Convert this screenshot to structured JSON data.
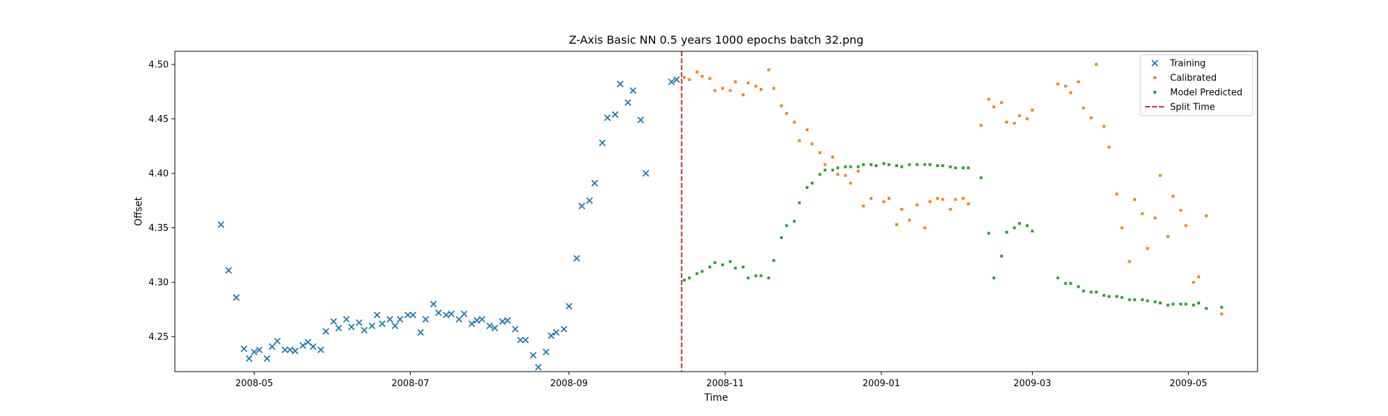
{
  "chart_data": {
    "type": "scatter",
    "title": "Z-Axis Basic NN 0.5 years 1000 epochs batch 32.png",
    "xlabel": "Time",
    "ylabel": "Offset",
    "xlim": [
      "2008-03-31",
      "2009-05-28"
    ],
    "ylim": [
      4.218,
      4.512
    ],
    "xticks": [
      "2008-05-01",
      "2008-07-01",
      "2008-09-01",
      "2008-11-01",
      "2009-01-01",
      "2009-03-01",
      "2009-05-01"
    ],
    "xtick_labels": [
      "2008-05",
      "2008-07",
      "2008-09",
      "2008-11",
      "2009-01",
      "2009-03",
      "2009-05"
    ],
    "yticks": [
      4.25,
      4.3,
      4.35,
      4.4,
      4.45,
      4.5
    ],
    "ytick_labels": [
      "4.25",
      "4.30",
      "4.35",
      "4.40",
      "4.45",
      "4.50"
    ],
    "grid": false,
    "legend_position": "top-right",
    "split_time": "2008-10-15",
    "series": [
      {
        "name": "Training",
        "marker": "x",
        "color": "#1f77b4",
        "points": [
          [
            "2008-04-18",
            4.353
          ],
          [
            "2008-04-21",
            4.311
          ],
          [
            "2008-04-24",
            4.286
          ],
          [
            "2008-04-27",
            4.239
          ],
          [
            "2008-04-29",
            4.23
          ],
          [
            "2008-05-01",
            4.236
          ],
          [
            "2008-05-03",
            4.238
          ],
          [
            "2008-05-06",
            4.23
          ],
          [
            "2008-05-08",
            4.241
          ],
          [
            "2008-05-10",
            4.246
          ],
          [
            "2008-05-13",
            4.238
          ],
          [
            "2008-05-15",
            4.238
          ],
          [
            "2008-05-17",
            4.237
          ],
          [
            "2008-05-20",
            4.242
          ],
          [
            "2008-05-22",
            4.245
          ],
          [
            "2008-05-24",
            4.241
          ],
          [
            "2008-05-27",
            4.238
          ],
          [
            "2008-05-29",
            4.255
          ],
          [
            "2008-06-01",
            4.264
          ],
          [
            "2008-06-03",
            4.258
          ],
          [
            "2008-06-06",
            4.266
          ],
          [
            "2008-06-08",
            4.259
          ],
          [
            "2008-06-11",
            4.263
          ],
          [
            "2008-06-13",
            4.256
          ],
          [
            "2008-06-16",
            4.26
          ],
          [
            "2008-06-18",
            4.27
          ],
          [
            "2008-06-20",
            4.262
          ],
          [
            "2008-06-23",
            4.266
          ],
          [
            "2008-06-25",
            4.26
          ],
          [
            "2008-06-27",
            4.266
          ],
          [
            "2008-06-30",
            4.27
          ],
          [
            "2008-07-02",
            4.27
          ],
          [
            "2008-07-05",
            4.254
          ],
          [
            "2008-07-07",
            4.266
          ],
          [
            "2008-07-10",
            4.28
          ],
          [
            "2008-07-12",
            4.272
          ],
          [
            "2008-07-15",
            4.27
          ],
          [
            "2008-07-17",
            4.271
          ],
          [
            "2008-07-20",
            4.266
          ],
          [
            "2008-07-22",
            4.271
          ],
          [
            "2008-07-25",
            4.262
          ],
          [
            "2008-07-27",
            4.265
          ],
          [
            "2008-07-29",
            4.266
          ],
          [
            "2008-08-01",
            4.26
          ],
          [
            "2008-08-03",
            4.258
          ],
          [
            "2008-08-06",
            4.264
          ],
          [
            "2008-08-08",
            4.265
          ],
          [
            "2008-08-11",
            4.257
          ],
          [
            "2008-08-13",
            4.247
          ],
          [
            "2008-08-15",
            4.247
          ],
          [
            "2008-08-18",
            4.233
          ],
          [
            "2008-08-20",
            4.222
          ],
          [
            "2008-08-23",
            4.236
          ],
          [
            "2008-08-25",
            4.251
          ],
          [
            "2008-08-27",
            4.254
          ],
          [
            "2008-08-30",
            4.257
          ],
          [
            "2008-09-01",
            4.278
          ],
          [
            "2008-09-04",
            4.322
          ],
          [
            "2008-09-06",
            4.37
          ],
          [
            "2008-09-09",
            4.375
          ],
          [
            "2008-09-11",
            4.391
          ],
          [
            "2008-09-14",
            4.428
          ],
          [
            "2008-09-16",
            4.451
          ],
          [
            "2008-09-19",
            4.454
          ],
          [
            "2008-09-21",
            4.482
          ],
          [
            "2008-09-24",
            4.465
          ],
          [
            "2008-09-26",
            4.476
          ],
          [
            "2008-09-29",
            4.449
          ],
          [
            "2008-10-01",
            4.4
          ],
          [
            "2008-10-11",
            4.484
          ],
          [
            "2008-10-13",
            4.486
          ]
        ]
      },
      {
        "name": "Calibrated",
        "marker": "dot",
        "color": "#ff7f0e",
        "points": [
          [
            "2008-10-16",
            4.488
          ],
          [
            "2008-10-18",
            4.486
          ],
          [
            "2008-10-21",
            4.493
          ],
          [
            "2008-10-23",
            4.489
          ],
          [
            "2008-10-26",
            4.487
          ],
          [
            "2008-10-28",
            4.476
          ],
          [
            "2008-10-31",
            4.478
          ],
          [
            "2008-11-03",
            4.476
          ],
          [
            "2008-11-05",
            4.484
          ],
          [
            "2008-11-08",
            4.472
          ],
          [
            "2008-11-10",
            4.483
          ],
          [
            "2008-11-13",
            4.48
          ],
          [
            "2008-11-15",
            4.477
          ],
          [
            "2008-11-18",
            4.495
          ],
          [
            "2008-11-20",
            4.478
          ],
          [
            "2008-11-23",
            4.462
          ],
          [
            "2008-11-25",
            4.455
          ],
          [
            "2008-11-28",
            4.447
          ],
          [
            "2008-11-30",
            4.43
          ],
          [
            "2008-12-03",
            4.44
          ],
          [
            "2008-12-05",
            4.427
          ],
          [
            "2008-12-08",
            4.419
          ],
          [
            "2008-12-10",
            4.408
          ],
          [
            "2008-12-13",
            4.415
          ],
          [
            "2008-12-15",
            4.399
          ],
          [
            "2008-12-18",
            4.398
          ],
          [
            "2008-12-20",
            4.391
          ],
          [
            "2008-12-23",
            4.402
          ],
          [
            "2008-12-25",
            4.37
          ],
          [
            "2008-12-28",
            4.377
          ],
          [
            "2008-12-30",
            4.407
          ],
          [
            "2009-01-02",
            4.374
          ],
          [
            "2009-01-04",
            4.377
          ],
          [
            "2009-01-07",
            4.353
          ],
          [
            "2009-01-09",
            4.367
          ],
          [
            "2009-01-12",
            4.357
          ],
          [
            "2009-01-15",
            4.371
          ],
          [
            "2009-01-18",
            4.35
          ],
          [
            "2009-01-20",
            4.374
          ],
          [
            "2009-01-23",
            4.377
          ],
          [
            "2009-01-25",
            4.376
          ],
          [
            "2009-01-28",
            4.367
          ],
          [
            "2009-01-30",
            4.376
          ],
          [
            "2009-02-02",
            4.377
          ],
          [
            "2009-02-04",
            4.372
          ],
          [
            "2009-02-09",
            4.444
          ],
          [
            "2009-02-12",
            4.468
          ],
          [
            "2009-02-14",
            4.461
          ],
          [
            "2009-02-17",
            4.465
          ],
          [
            "2009-02-19",
            4.447
          ],
          [
            "2009-02-22",
            4.446
          ],
          [
            "2009-02-24",
            4.453
          ],
          [
            "2009-02-27",
            4.45
          ],
          [
            "2009-03-01",
            4.458
          ],
          [
            "2009-03-11",
            4.482
          ],
          [
            "2009-03-14",
            4.48
          ],
          [
            "2009-03-16",
            4.474
          ],
          [
            "2009-03-19",
            4.484
          ],
          [
            "2009-03-21",
            4.46
          ],
          [
            "2009-03-24",
            4.451
          ],
          [
            "2009-03-26",
            4.5
          ],
          [
            "2009-03-29",
            4.443
          ],
          [
            "2009-03-31",
            4.424
          ],
          [
            "2009-04-03",
            4.381
          ],
          [
            "2009-04-05",
            4.35
          ],
          [
            "2009-04-08",
            4.319
          ],
          [
            "2009-04-10",
            4.376
          ],
          [
            "2009-04-13",
            4.363
          ],
          [
            "2009-04-15",
            4.331
          ],
          [
            "2009-04-18",
            4.359
          ],
          [
            "2009-04-20",
            4.398
          ],
          [
            "2009-04-23",
            4.342
          ],
          [
            "2009-04-25",
            4.379
          ],
          [
            "2009-04-28",
            4.366
          ],
          [
            "2009-04-30",
            4.352
          ],
          [
            "2009-05-03",
            4.3
          ],
          [
            "2009-05-05",
            4.305
          ],
          [
            "2009-05-08",
            4.361
          ],
          [
            "2009-05-14",
            4.271
          ]
        ]
      },
      {
        "name": "Model Predicted",
        "marker": "dot",
        "color": "#2ca02c",
        "points": [
          [
            "2008-10-16",
            4.302
          ],
          [
            "2008-10-18",
            4.304
          ],
          [
            "2008-10-21",
            4.308
          ],
          [
            "2008-10-23",
            4.31
          ],
          [
            "2008-10-26",
            4.314
          ],
          [
            "2008-10-28",
            4.318
          ],
          [
            "2008-10-31",
            4.316
          ],
          [
            "2008-11-03",
            4.319
          ],
          [
            "2008-11-05",
            4.313
          ],
          [
            "2008-11-08",
            4.314
          ],
          [
            "2008-11-10",
            4.304
          ],
          [
            "2008-11-13",
            4.306
          ],
          [
            "2008-11-15",
            4.306
          ],
          [
            "2008-11-18",
            4.304
          ],
          [
            "2008-11-20",
            4.32
          ],
          [
            "2008-11-23",
            4.341
          ],
          [
            "2008-11-25",
            4.352
          ],
          [
            "2008-11-28",
            4.356
          ],
          [
            "2008-11-30",
            4.373
          ],
          [
            "2008-12-03",
            4.387
          ],
          [
            "2008-12-05",
            4.391
          ],
          [
            "2008-12-08",
            4.399
          ],
          [
            "2008-12-10",
            4.403
          ],
          [
            "2008-12-13",
            4.403
          ],
          [
            "2008-12-15",
            4.405
          ],
          [
            "2008-12-18",
            4.406
          ],
          [
            "2008-12-20",
            4.406
          ],
          [
            "2008-12-23",
            4.406
          ],
          [
            "2008-12-25",
            4.408
          ],
          [
            "2008-12-28",
            4.408
          ],
          [
            "2008-12-30",
            4.407
          ],
          [
            "2009-01-02",
            4.409
          ],
          [
            "2009-01-04",
            4.408
          ],
          [
            "2009-01-07",
            4.407
          ],
          [
            "2009-01-09",
            4.406
          ],
          [
            "2009-01-12",
            4.408
          ],
          [
            "2009-01-15",
            4.408
          ],
          [
            "2009-01-18",
            4.408
          ],
          [
            "2009-01-20",
            4.408
          ],
          [
            "2009-01-23",
            4.407
          ],
          [
            "2009-01-25",
            4.407
          ],
          [
            "2009-01-28",
            4.406
          ],
          [
            "2009-01-30",
            4.405
          ],
          [
            "2009-02-02",
            4.405
          ],
          [
            "2009-02-04",
            4.405
          ],
          [
            "2009-02-09",
            4.396
          ],
          [
            "2009-02-12",
            4.345
          ],
          [
            "2009-02-14",
            4.304
          ],
          [
            "2009-02-17",
            4.324
          ],
          [
            "2009-02-19",
            4.346
          ],
          [
            "2009-02-22",
            4.35
          ],
          [
            "2009-02-24",
            4.354
          ],
          [
            "2009-02-27",
            4.352
          ],
          [
            "2009-03-01",
            4.347
          ],
          [
            "2009-03-11",
            4.304
          ],
          [
            "2009-03-14",
            4.299
          ],
          [
            "2009-03-16",
            4.299
          ],
          [
            "2009-03-19",
            4.296
          ],
          [
            "2009-03-21",
            4.292
          ],
          [
            "2009-03-24",
            4.291
          ],
          [
            "2009-03-26",
            4.291
          ],
          [
            "2009-03-29",
            4.288
          ],
          [
            "2009-03-31",
            4.287
          ],
          [
            "2009-04-03",
            4.287
          ],
          [
            "2009-04-05",
            4.286
          ],
          [
            "2009-04-08",
            4.284
          ],
          [
            "2009-04-10",
            4.284
          ],
          [
            "2009-04-13",
            4.284
          ],
          [
            "2009-04-15",
            4.283
          ],
          [
            "2009-04-18",
            4.282
          ],
          [
            "2009-04-20",
            4.281
          ],
          [
            "2009-04-23",
            4.279
          ],
          [
            "2009-04-25",
            4.28
          ],
          [
            "2009-04-28",
            4.28
          ],
          [
            "2009-04-30",
            4.28
          ],
          [
            "2009-05-03",
            4.279
          ],
          [
            "2009-05-05",
            4.281
          ],
          [
            "2009-05-08",
            4.276
          ],
          [
            "2009-05-14",
            4.277
          ]
        ]
      }
    ],
    "split_label": "Split Time",
    "split_color": "#d62728"
  }
}
